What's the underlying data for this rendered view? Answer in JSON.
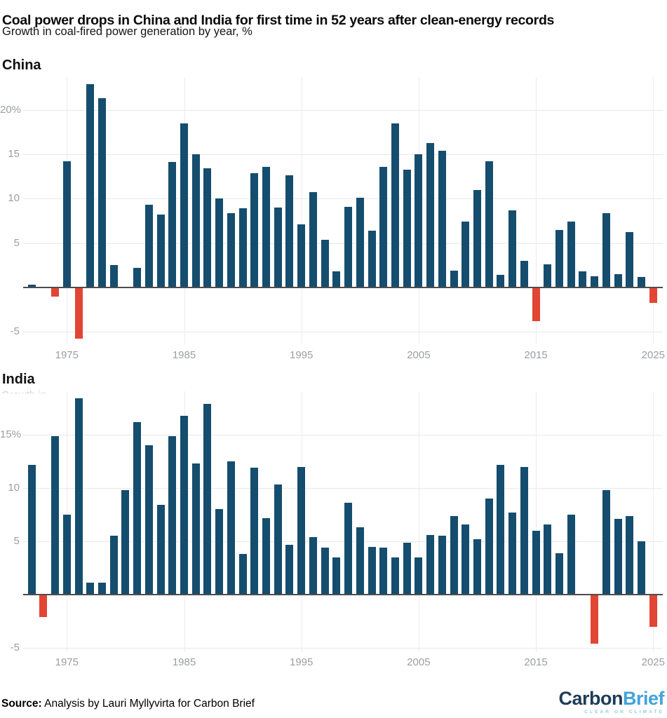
{
  "header": {
    "title": "Coal power drops in China and India for first time in 52 years after clean-energy records",
    "subtitle": "Growth in coal-fired power generation by year, %"
  },
  "footer": {
    "source_label": "Source:",
    "source_text": " Analysis by Lauri Myllyvirta for Carbon Brief"
  },
  "logo": {
    "part1": "Carbon",
    "part2": "Brief",
    "tagline": "CLEAR ON CLIMATE"
  },
  "colors": {
    "bar_positive": "#154d6e",
    "bar_negative": "#e24534",
    "grid": "#e8e8e8",
    "axis": "#4d4d4d",
    "tick_label": "#9b9ea1"
  },
  "chart_data": [
    {
      "type": "bar",
      "title": "China",
      "ylabel": "Growth in coal-fired power generation, %",
      "grid": true,
      "ylim": [
        -7,
        23.7
      ],
      "yticks": [
        {
          "v": 20,
          "label": "20%"
        },
        {
          "v": 15,
          "label": "15"
        },
        {
          "v": 10,
          "label": "10"
        },
        {
          "v": 5,
          "label": "5"
        },
        {
          "v": -5,
          "label": "-5"
        }
      ],
      "xticks": [
        1975,
        1985,
        1995,
        2005,
        2015,
        2025
      ],
      "x": [
        1972,
        1973,
        1974,
        1975,
        1976,
        1977,
        1978,
        1979,
        1980,
        1981,
        1982,
        1983,
        1984,
        1985,
        1986,
        1987,
        1988,
        1989,
        1990,
        1991,
        1992,
        1993,
        1994,
        1995,
        1996,
        1997,
        1998,
        1999,
        2000,
        2001,
        2002,
        2003,
        2004,
        2005,
        2006,
        2007,
        2008,
        2009,
        2010,
        2011,
        2012,
        2013,
        2014,
        2015,
        2016,
        2017,
        2018,
        2019,
        2020,
        2021,
        2022,
        2023,
        2024,
        2025
      ],
      "values": [
        0.3,
        0.0,
        -1.0,
        14.2,
        -5.8,
        22.9,
        21.3,
        2.5,
        0.0,
        2.2,
        9.3,
        8.2,
        14.1,
        18.5,
        15.0,
        13.4,
        10.0,
        8.4,
        8.9,
        12.9,
        13.6,
        9.0,
        12.6,
        7.1,
        10.7,
        5.4,
        1.8,
        9.1,
        10.1,
        6.4,
        13.6,
        18.5,
        13.3,
        15.0,
        16.3,
        15.4,
        1.9,
        7.4,
        11.0,
        14.2,
        1.4,
        8.7,
        3.0,
        -3.8,
        2.6,
        6.5,
        7.4,
        1.8,
        1.3,
        8.4,
        1.5,
        6.2,
        1.2,
        -1.7
      ]
    },
    {
      "type": "bar",
      "title": "India",
      "ylabel": "Growth in coal-fired power generation, %",
      "grid": true,
      "ylim": [
        -5.5,
        18.9
      ],
      "yticks": [
        {
          "v": 15,
          "label": "15%"
        },
        {
          "v": 10,
          "label": "10"
        },
        {
          "v": 5,
          "label": "5"
        },
        {
          "v": -5,
          "label": "-5"
        }
      ],
      "xticks": [
        1975,
        1985,
        1995,
        2005,
        2015,
        2025
      ],
      "x": [
        1972,
        1973,
        1974,
        1975,
        1976,
        1977,
        1978,
        1979,
        1980,
        1981,
        1982,
        1983,
        1984,
        1985,
        1986,
        1987,
        1988,
        1989,
        1990,
        1991,
        1992,
        1993,
        1994,
        1995,
        1996,
        1997,
        1998,
        1999,
        2000,
        2001,
        2002,
        2003,
        2004,
        2005,
        2006,
        2007,
        2008,
        2009,
        2010,
        2011,
        2012,
        2013,
        2014,
        2015,
        2016,
        2017,
        2018,
        2019,
        2020,
        2021,
        2022,
        2023,
        2024,
        2025
      ],
      "values": [
        12.2,
        -2.1,
        14.9,
        7.5,
        18.4,
        1.1,
        1.1,
        5.5,
        9.8,
        16.2,
        14.0,
        8.4,
        14.9,
        16.8,
        12.3,
        17.9,
        8.0,
        12.5,
        3.8,
        11.9,
        7.2,
        10.3,
        4.7,
        12.0,
        5.4,
        4.4,
        3.5,
        8.6,
        6.3,
        4.5,
        4.4,
        3.5,
        4.9,
        3.5,
        5.6,
        5.5,
        7.4,
        6.6,
        5.2,
        9.0,
        12.2,
        7.7,
        12.0,
        6.0,
        6.6,
        3.9,
        7.5,
        0.0,
        -4.6,
        9.8,
        7.1,
        7.4,
        5.0,
        -3.0
      ]
    }
  ]
}
